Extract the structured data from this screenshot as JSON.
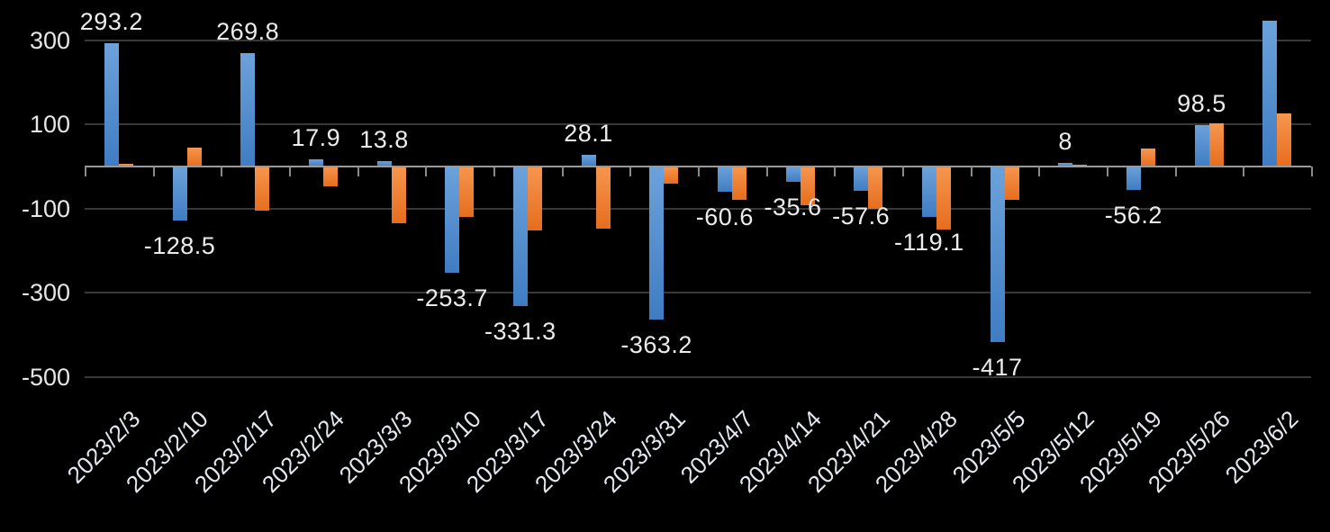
{
  "chart_data": {
    "type": "bar",
    "title": "",
    "legend": "none",
    "background_color": "#000000",
    "text_color": "#E6E6E6",
    "gridline_color": "#383838",
    "axis_line_color": "#9A9A9A",
    "categories": [
      "2023/2/3",
      "2023/2/10",
      "2023/2/17",
      "2023/2/24",
      "2023/3/3",
      "2023/3/10",
      "2023/3/17",
      "2023/3/24",
      "2023/3/31",
      "2023/4/7",
      "2023/4/14",
      "2023/4/21",
      "2023/4/28",
      "2023/5/5",
      "2023/5/12",
      "2023/5/19",
      "2023/5/26",
      "2023/6/2"
    ],
    "series": [
      {
        "name": "blue-series",
        "color_top": "#6CA2DB",
        "color_bottom": "#3F7CC2",
        "values": [
          293.2,
          -128.5,
          269.8,
          17.9,
          13.8,
          -253.7,
          -331.3,
          28.1,
          -363.2,
          -60.6,
          -35.6,
          -57.6,
          -119.1,
          -417,
          8,
          -56.2,
          98.5,
          346
        ],
        "data_labels": [
          "293.2",
          "-128.5",
          "269.8",
          "17.9",
          "13.8",
          "-253.7",
          "-331.3",
          "28.1",
          "-363.2",
          "-60.6",
          "-35.6",
          "-57.6",
          "-119.1",
          "-417",
          "8",
          "-56.2",
          "98.5",
          null
        ]
      },
      {
        "name": "orange-series",
        "color_top": "#F6964F",
        "color_bottom": "#E66D1E",
        "values": [
          6,
          45,
          -105,
          -47,
          -135,
          -120,
          -151,
          -148,
          -40,
          -79,
          -93,
          -101,
          -149,
          -79,
          3,
          42,
          102,
          127
        ],
        "data_labels": null
      }
    ],
    "y_axis": {
      "ticks": [
        300,
        100,
        -100,
        -300,
        -500
      ],
      "gridlines": true,
      "range_estimate": [
        -500,
        360
      ]
    },
    "x_axis": {
      "label_rotation_deg": -45,
      "tick_marks": "between-categories"
    }
  }
}
